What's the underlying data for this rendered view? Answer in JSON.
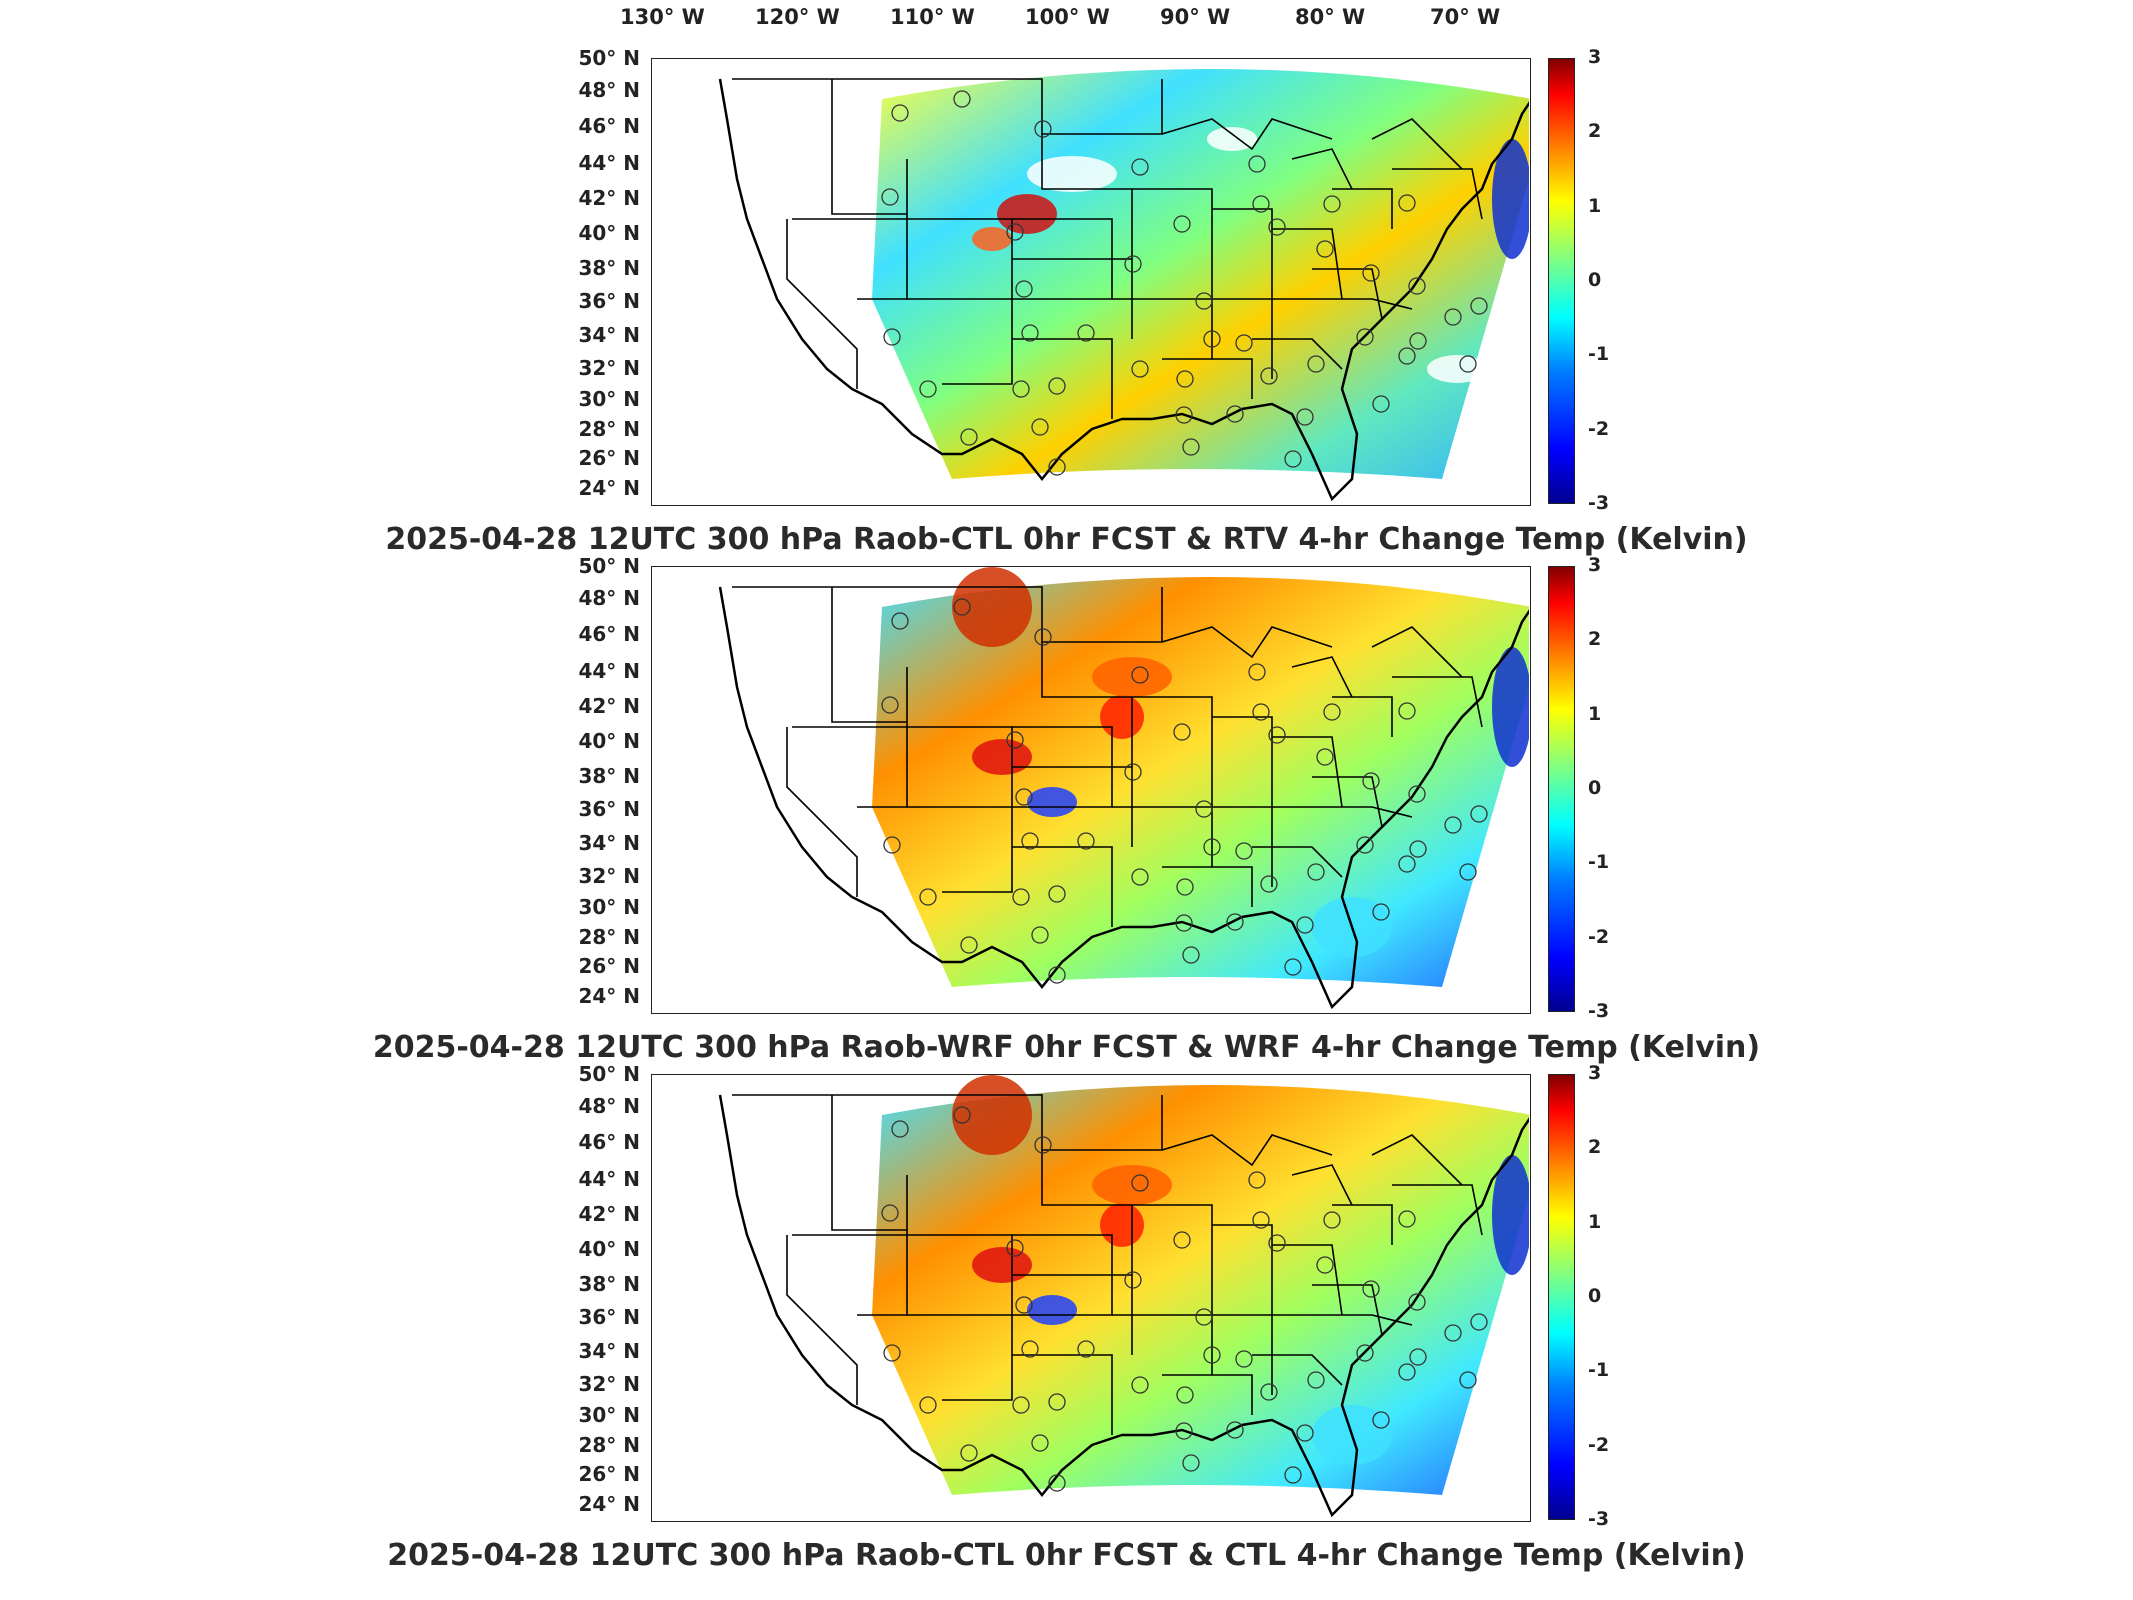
{
  "lon_labels": [
    "130° W",
    "120° W",
    "110° W",
    "100° W",
    "90° W",
    "80° W",
    "70° W"
  ],
  "lat_labels": [
    "50° N",
    "48° N",
    "46° N",
    "44° N",
    "42° N",
    "40° N",
    "38° N",
    "36° N",
    "34° N",
    "32° N",
    "30° N",
    "28° N",
    "26° N",
    "24° N"
  ],
  "colorbar": {
    "ticks": [
      "3",
      "2",
      "1",
      "0",
      "-1",
      "-2",
      "-3"
    ],
    "min": -3,
    "max": 3,
    "colormap": "jet"
  },
  "colors": {
    "high": "#800000",
    "mid": "#80ff80",
    "low": "#00008f",
    "outline": "#000000"
  },
  "panels": [
    {
      "title": "2025-04-28 12UTC 300 hPa Raob-CTL 0hr FCST & RTV 4-hr Change Temp (Kelvin)"
    },
    {
      "title": "2025-04-28 12UTC 300 hPa Raob-WRF 0hr FCST & WRF 4-hr Change Temp (Kelvin)"
    },
    {
      "title": "2025-04-28 12UTC 300 hPa Raob-CTL 0hr FCST & CTL 4-hr Change Temp (Kelvin)"
    }
  ]
}
